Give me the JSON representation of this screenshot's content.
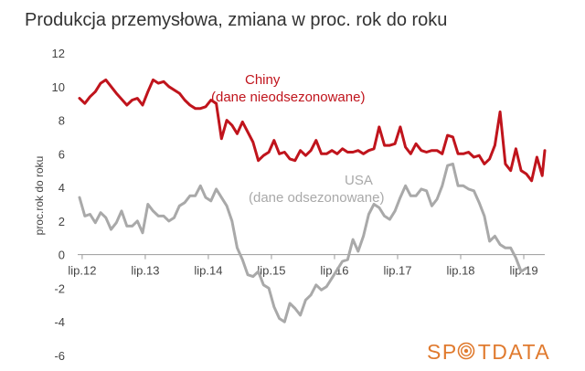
{
  "chart_data": {
    "type": "line",
    "title": "Produkcja przemysłowa, zmiana w proc. rok do roku",
    "xlabel": "",
    "ylabel": "proc.rok do roku",
    "ylim": [
      -6,
      12
    ],
    "yticks": [
      -6,
      -4,
      -2,
      0,
      2,
      4,
      6,
      8,
      10,
      12
    ],
    "xlim": [
      2012.458,
      2019.833
    ],
    "xticks": [
      {
        "label": "lip.12",
        "x": 2012.5
      },
      {
        "label": "lip.13",
        "x": 2013.5
      },
      {
        "label": "lip.14",
        "x": 2014.5
      },
      {
        "label": "lip.15",
        "x": 2015.5
      },
      {
        "label": "lip.16",
        "x": 2016.5
      },
      {
        "label": "lip.17",
        "x": 2017.5
      },
      {
        "label": "lip.18",
        "x": 2018.5
      },
      {
        "label": "lip.19",
        "x": 2019.5
      }
    ],
    "grid": false,
    "legend": "none",
    "annotations": [
      {
        "text": "Chiny",
        "series": "Chiny"
      },
      {
        "text": "(dane nieodsezonowane)",
        "series": "Chiny"
      },
      {
        "text": "USA",
        "series": "USA"
      },
      {
        "text": "(dane odsezonowane)",
        "series": "USA"
      }
    ],
    "series": [
      {
        "name": "Chiny",
        "color": "#c0141c",
        "points": [
          [
            2012.458,
            9.3
          ],
          [
            2012.542,
            9.0
          ],
          [
            2012.625,
            9.4
          ],
          [
            2012.708,
            9.7
          ],
          [
            2012.792,
            10.2
          ],
          [
            2012.875,
            10.4
          ],
          [
            2013.042,
            9.6
          ],
          [
            2013.208,
            8.9
          ],
          [
            2013.292,
            9.2
          ],
          [
            2013.375,
            9.3
          ],
          [
            2013.458,
            8.9
          ],
          [
            2013.542,
            9.7
          ],
          [
            2013.625,
            10.4
          ],
          [
            2013.708,
            10.2
          ],
          [
            2013.792,
            10.3
          ],
          [
            2013.875,
            10.0
          ],
          [
            2014.042,
            9.6
          ],
          [
            2014.125,
            9.2
          ],
          [
            2014.208,
            8.9
          ],
          [
            2014.292,
            8.7
          ],
          [
            2014.375,
            8.7
          ],
          [
            2014.458,
            8.8
          ],
          [
            2014.542,
            9.2
          ],
          [
            2014.625,
            9.0
          ],
          [
            2014.708,
            6.9
          ],
          [
            2014.792,
            8.0
          ],
          [
            2014.875,
            7.7
          ],
          [
            2014.958,
            7.2
          ],
          [
            2015.042,
            7.9
          ],
          [
            2015.208,
            6.7
          ],
          [
            2015.292,
            5.6
          ],
          [
            2015.375,
            5.9
          ],
          [
            2015.458,
            6.1
          ],
          [
            2015.542,
            6.8
          ],
          [
            2015.625,
            6.0
          ],
          [
            2015.708,
            6.1
          ],
          [
            2015.792,
            5.7
          ],
          [
            2015.875,
            5.6
          ],
          [
            2015.958,
            6.2
          ],
          [
            2016.042,
            5.9
          ],
          [
            2016.125,
            6.2
          ],
          [
            2016.208,
            6.8
          ],
          [
            2016.292,
            6.0
          ],
          [
            2016.375,
            6.0
          ],
          [
            2016.458,
            6.2
          ],
          [
            2016.542,
            6.0
          ],
          [
            2016.625,
            6.3
          ],
          [
            2016.708,
            6.1
          ],
          [
            2016.792,
            6.1
          ],
          [
            2016.875,
            6.2
          ],
          [
            2016.958,
            6.0
          ],
          [
            2017.042,
            6.2
          ],
          [
            2017.125,
            6.3
          ],
          [
            2017.208,
            7.6
          ],
          [
            2017.292,
            6.5
          ],
          [
            2017.375,
            6.5
          ],
          [
            2017.458,
            6.6
          ],
          [
            2017.542,
            7.6
          ],
          [
            2017.625,
            6.4
          ],
          [
            2017.708,
            6.0
          ],
          [
            2017.792,
            6.6
          ],
          [
            2017.875,
            6.2
          ],
          [
            2017.958,
            6.1
          ],
          [
            2018.042,
            6.2
          ],
          [
            2018.125,
            6.2
          ],
          [
            2018.208,
            6.0
          ],
          [
            2018.292,
            7.1
          ],
          [
            2018.375,
            7.0
          ],
          [
            2018.458,
            6.0
          ],
          [
            2018.542,
            6.0
          ],
          [
            2018.625,
            6.1
          ],
          [
            2018.708,
            5.8
          ],
          [
            2018.792,
            5.9
          ],
          [
            2018.875,
            5.4
          ],
          [
            2018.958,
            5.7
          ],
          [
            2019.042,
            6.5
          ],
          [
            2019.125,
            8.5
          ],
          [
            2019.208,
            5.4
          ],
          [
            2019.292,
            5.0
          ],
          [
            2019.375,
            6.3
          ],
          [
            2019.458,
            5.0
          ],
          [
            2019.542,
            4.8
          ],
          [
            2019.625,
            4.4
          ],
          [
            2019.708,
            5.8
          ],
          [
            2019.792,
            4.7
          ],
          [
            2019.833,
            6.2
          ]
        ]
      },
      {
        "name": "USA",
        "color": "#a9a9a9",
        "points": [
          [
            2012.458,
            3.4
          ],
          [
            2012.542,
            2.3
          ],
          [
            2012.625,
            2.4
          ],
          [
            2012.708,
            1.9
          ],
          [
            2012.792,
            2.5
          ],
          [
            2012.875,
            2.2
          ],
          [
            2012.958,
            1.5
          ],
          [
            2013.042,
            1.9
          ],
          [
            2013.125,
            2.6
          ],
          [
            2013.208,
            1.7
          ],
          [
            2013.292,
            1.7
          ],
          [
            2013.375,
            2.0
          ],
          [
            2013.458,
            1.3
          ],
          [
            2013.542,
            3.0
          ],
          [
            2013.625,
            2.6
          ],
          [
            2013.708,
            2.3
          ],
          [
            2013.792,
            2.3
          ],
          [
            2013.875,
            2.0
          ],
          [
            2013.958,
            2.2
          ],
          [
            2014.042,
            2.9
          ],
          [
            2014.125,
            3.1
          ],
          [
            2014.208,
            3.5
          ],
          [
            2014.292,
            3.5
          ],
          [
            2014.375,
            4.1
          ],
          [
            2014.458,
            3.4
          ],
          [
            2014.542,
            3.2
          ],
          [
            2014.625,
            3.9
          ],
          [
            2014.708,
            3.4
          ],
          [
            2014.792,
            2.9
          ],
          [
            2014.875,
            2.0
          ],
          [
            2014.958,
            0.4
          ],
          [
            2015.042,
            -0.3
          ],
          [
            2015.125,
            -1.2
          ],
          [
            2015.208,
            -1.3
          ],
          [
            2015.292,
            -1.0
          ],
          [
            2015.375,
            -1.8
          ],
          [
            2015.458,
            -2.0
          ],
          [
            2015.542,
            -3.1
          ],
          [
            2015.625,
            -3.8
          ],
          [
            2015.708,
            -4.0
          ],
          [
            2015.792,
            -2.9
          ],
          [
            2015.875,
            -3.2
          ],
          [
            2015.958,
            -3.6
          ],
          [
            2016.042,
            -2.7
          ],
          [
            2016.125,
            -2.4
          ],
          [
            2016.208,
            -1.8
          ],
          [
            2016.292,
            -2.1
          ],
          [
            2016.375,
            -1.9
          ],
          [
            2016.458,
            -1.4
          ],
          [
            2016.542,
            -0.9
          ],
          [
            2016.625,
            -0.4
          ],
          [
            2016.708,
            -0.3
          ],
          [
            2016.792,
            0.9
          ],
          [
            2016.875,
            0.2
          ],
          [
            2016.958,
            1.1
          ],
          [
            2017.042,
            2.4
          ],
          [
            2017.125,
            3.0
          ],
          [
            2017.208,
            2.8
          ],
          [
            2017.292,
            2.3
          ],
          [
            2017.375,
            2.1
          ],
          [
            2017.458,
            2.6
          ],
          [
            2017.542,
            3.4
          ],
          [
            2017.625,
            4.1
          ],
          [
            2017.708,
            3.5
          ],
          [
            2017.792,
            3.5
          ],
          [
            2017.875,
            3.9
          ],
          [
            2017.958,
            3.8
          ],
          [
            2018.042,
            2.9
          ],
          [
            2018.125,
            3.3
          ],
          [
            2018.208,
            4.1
          ],
          [
            2018.292,
            5.3
          ],
          [
            2018.375,
            5.4
          ],
          [
            2018.458,
            4.1
          ],
          [
            2018.542,
            4.1
          ],
          [
            2018.625,
            3.9
          ],
          [
            2018.708,
            3.8
          ],
          [
            2018.792,
            3.1
          ],
          [
            2018.875,
            2.3
          ],
          [
            2018.958,
            0.8
          ],
          [
            2019.042,
            1.1
          ],
          [
            2019.125,
            0.6
          ],
          [
            2019.208,
            0.4
          ],
          [
            2019.292,
            0.4
          ],
          [
            2019.375,
            -0.2
          ],
          [
            2019.458,
            -1.0
          ],
          [
            2019.542,
            -0.8
          ]
        ]
      }
    ]
  },
  "logo": {
    "text_before": "SP",
    "text_after": "TDATA",
    "color": "#e07a2e",
    "icon": "spot-target-icon"
  }
}
